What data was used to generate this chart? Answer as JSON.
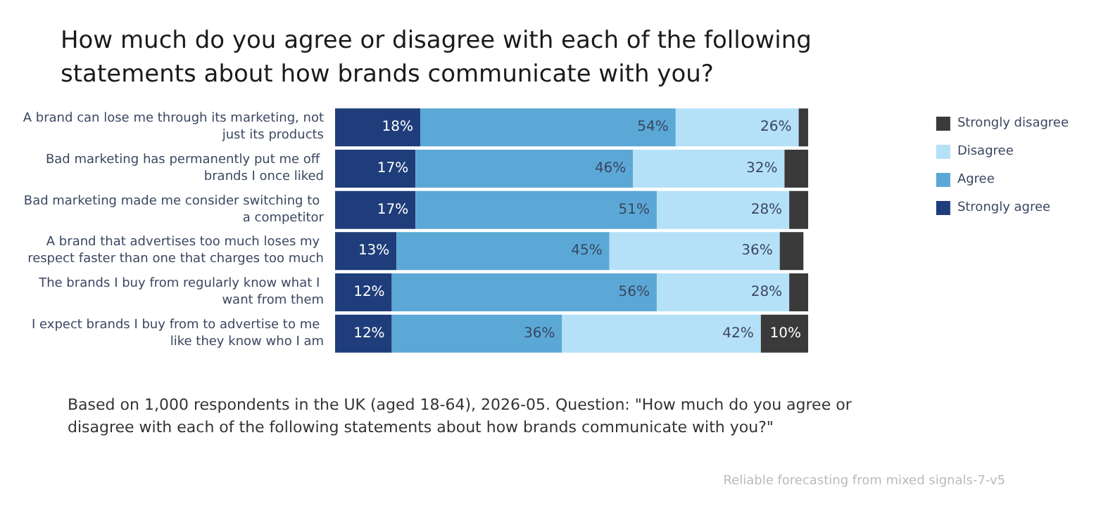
{
  "chart_data": {
    "type": "bar",
    "orientation": "horizontal",
    "stacked": true,
    "title": "How much do you agree or disagree with each of the following statements about how brands communicate with you?",
    "categories": [
      "A brand can lose me through its marketing, not just its products",
      "Bad marketing has permanently put me off brands I once liked",
      "Bad marketing made me consider switching to a competitor",
      "A brand that advertises too much loses my respect faster than one that charges too much",
      "The brands I buy from regularly know what I want from them",
      "I expect brands I buy from to advertise to me like they know who I am"
    ],
    "series": [
      {
        "name": "Strongly agree",
        "color": "#1f3d7a",
        "values": [
          18,
          17,
          17,
          13,
          12,
          12
        ],
        "value_labels": [
          "18%",
          "17%",
          "17%",
          "13%",
          "12%",
          "12%"
        ]
      },
      {
        "name": "Agree",
        "color": "#5ba8d6",
        "values": [
          54,
          46,
          51,
          45,
          56,
          36
        ],
        "value_labels": [
          "54%",
          "46%",
          "51%",
          "45%",
          "56%",
          "36%"
        ]
      },
      {
        "name": "Disagree",
        "color": "#b5e1f8",
        "values": [
          26,
          32,
          28,
          36,
          28,
          42
        ],
        "value_labels": [
          "26%",
          "32%",
          "28%",
          "36%",
          "28%",
          "42%"
        ]
      },
      {
        "name": "Strongly disagree",
        "color": "#3a3a3a",
        "values": [
          2,
          5,
          4,
          5,
          4,
          10
        ],
        "value_labels": [
          null,
          null,
          null,
          null,
          null,
          "10%"
        ]
      }
    ],
    "legend": "right",
    "annotations": [
      "Based on 1,000 respondents in the UK (aged 18-64), 2026-05. Question: \"How much do you agree or disagree with each of the following statements about how brands communicate with you?\"",
      "Reliable forecasting from mixed signals-7-v5"
    ]
  }
}
